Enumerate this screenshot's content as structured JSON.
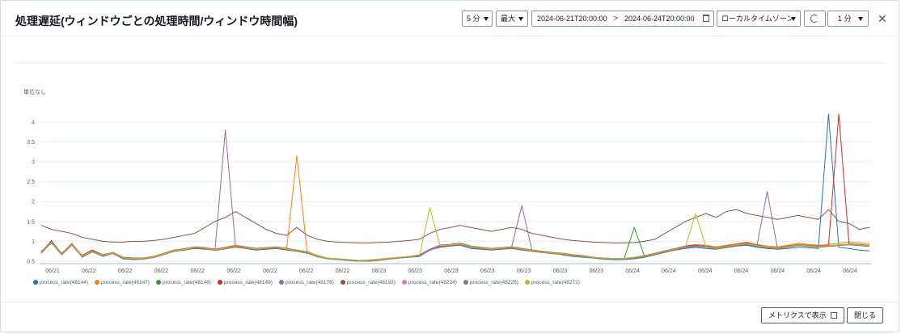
{
  "header": {
    "title": "処理遅延(ウィンドウごとの処理時間/ウィンドウ時間幅)",
    "period": "5 分",
    "stat": "最大",
    "range_start": "2024-06-21T20:00:00",
    "range_sep": ">",
    "range_end": "2024-06-24T20:00:00",
    "timezone": "ローカルタイムゾーン",
    "interval": "1 分",
    "close_label": "✕"
  },
  "footer": {
    "view_metrics_label": "メトリクスで表示",
    "close_label": "閉じる"
  },
  "chart_data": {
    "type": "line",
    "unit_label": "単位なし",
    "ylim": [
      0.5,
      4.2
    ],
    "yticks": [
      "0.5",
      "1",
      "1.5",
      "2",
      "2.5",
      "3",
      "3.5",
      "4"
    ],
    "xticks": [
      "06/21",
      "06/22",
      "06/22",
      "06/22",
      "06/22",
      "06/22",
      "06/22",
      "06/22",
      "06/22",
      "06/23",
      "06/23",
      "06/23",
      "06/23",
      "06/23",
      "06/23",
      "06/23",
      "06/24",
      "06/24",
      "06/24",
      "06/24",
      "06/24",
      "06/24",
      "06/24"
    ],
    "grid": true,
    "legend_position": "bottom",
    "series": [
      {
        "name": "process_rate(48144)",
        "color": "#1f77b4",
        "values": [
          0.72,
          1.02,
          0.68,
          0.95,
          0.6,
          0.75,
          0.62,
          0.7,
          0.56,
          0.54,
          0.55,
          0.6,
          0.68,
          0.75,
          0.78,
          0.82,
          0.8,
          0.78,
          0.82,
          0.85,
          0.82,
          0.78,
          0.8,
          0.82,
          0.78,
          0.75,
          0.7,
          0.62,
          0.56,
          0.54,
          0.52,
          0.5,
          0.5,
          0.52,
          0.55,
          0.58,
          0.6,
          0.62,
          0.78,
          0.85,
          0.88,
          0.9,
          0.82,
          0.8,
          0.78,
          0.8,
          0.82,
          0.78,
          0.75,
          0.72,
          0.7,
          0.66,
          0.62,
          0.6,
          0.58,
          0.55,
          0.54,
          0.54,
          0.56,
          0.6,
          0.66,
          0.72,
          0.78,
          0.82,
          0.85,
          0.82,
          0.8,
          0.84,
          0.88,
          0.9,
          0.85,
          0.82,
          0.8,
          0.82,
          0.85,
          0.84,
          0.82,
          4.2,
          0.85,
          0.82,
          0.78,
          0.76
        ]
      },
      {
        "name": "process_rate(48147)",
        "color": "#ff7f0e",
        "values": [
          0.75,
          0.95,
          0.7,
          0.9,
          0.65,
          0.78,
          0.66,
          0.72,
          0.6,
          0.58,
          0.58,
          0.62,
          0.7,
          0.78,
          0.82,
          0.86,
          0.84,
          0.8,
          0.85,
          0.9,
          0.86,
          0.82,
          0.84,
          0.86,
          0.82,
          3.15,
          0.74,
          0.64,
          0.58,
          0.56,
          0.54,
          0.52,
          0.53,
          0.55,
          0.58,
          0.6,
          0.62,
          0.66,
          0.8,
          0.9,
          0.92,
          0.95,
          0.88,
          0.85,
          0.82,
          0.84,
          0.86,
          0.82,
          0.78,
          0.75,
          0.72,
          0.7,
          0.66,
          0.64,
          0.6,
          0.58,
          0.57,
          0.57,
          0.6,
          0.64,
          0.7,
          0.76,
          0.82,
          0.88,
          0.92,
          0.9,
          0.86,
          0.9,
          0.94,
          0.98,
          0.92,
          0.88,
          0.86,
          0.9,
          0.95,
          0.92,
          0.9,
          0.92,
          0.95,
          0.98,
          0.96,
          0.94
        ]
      },
      {
        "name": "process_rate(48148)",
        "color": "#2ca02c",
        "values": [
          0.7,
          0.98,
          0.66,
          0.92,
          0.62,
          0.74,
          0.64,
          0.7,
          0.58,
          0.56,
          0.56,
          0.6,
          0.68,
          0.76,
          0.8,
          0.84,
          0.82,
          0.78,
          0.82,
          0.86,
          0.84,
          0.8,
          0.82,
          0.84,
          0.8,
          0.76,
          0.72,
          0.62,
          0.57,
          0.55,
          0.53,
          0.51,
          0.52,
          0.54,
          0.56,
          0.6,
          0.62,
          0.64,
          0.78,
          0.88,
          0.9,
          0.92,
          0.86,
          0.82,
          0.8,
          0.82,
          0.84,
          0.8,
          0.76,
          0.74,
          0.72,
          0.68,
          0.64,
          0.62,
          0.6,
          0.57,
          0.56,
          0.56,
          1.35,
          0.62,
          0.68,
          0.74,
          0.8,
          0.85,
          0.88,
          0.86,
          0.82,
          0.86,
          0.9,
          0.94,
          0.88,
          0.85,
          0.84,
          0.86,
          0.9,
          0.88,
          0.86,
          0.88,
          0.9,
          0.92,
          0.9,
          0.88
        ]
      },
      {
        "name": "process_rate(48149)",
        "color": "#d62728",
        "values": [
          0.74,
          1.0,
          0.7,
          0.94,
          0.64,
          0.78,
          0.66,
          0.72,
          0.6,
          0.58,
          0.58,
          0.62,
          0.7,
          0.78,
          0.8,
          0.86,
          0.84,
          0.8,
          0.84,
          0.88,
          0.86,
          0.82,
          0.84,
          0.86,
          0.82,
          0.78,
          0.74,
          0.64,
          0.58,
          0.56,
          0.54,
          0.52,
          0.52,
          0.54,
          0.57,
          0.6,
          0.62,
          0.66,
          0.8,
          0.9,
          0.92,
          0.95,
          0.88,
          0.84,
          0.82,
          0.84,
          0.86,
          0.82,
          0.78,
          0.75,
          0.72,
          0.7,
          0.66,
          0.64,
          0.6,
          0.58,
          0.57,
          0.57,
          0.6,
          0.64,
          0.7,
          0.76,
          0.82,
          0.88,
          0.9,
          0.88,
          0.84,
          0.88,
          0.92,
          0.96,
          0.9,
          0.86,
          0.84,
          0.88,
          0.92,
          0.9,
          0.88,
          0.9,
          4.2,
          0.94,
          0.92,
          0.9
        ]
      },
      {
        "name": "process_rate(48176)",
        "color": "#9467bd",
        "values": [
          0.73,
          0.99,
          0.69,
          0.93,
          0.63,
          0.76,
          0.65,
          0.71,
          0.59,
          0.57,
          0.57,
          0.61,
          0.69,
          0.77,
          0.81,
          0.85,
          0.83,
          0.79,
          3.8,
          0.87,
          0.85,
          0.81,
          0.83,
          0.85,
          0.81,
          0.77,
          0.73,
          0.63,
          0.58,
          0.56,
          0.54,
          0.52,
          0.52,
          0.54,
          0.56,
          0.6,
          0.62,
          0.65,
          0.8,
          0.89,
          0.91,
          0.94,
          0.87,
          0.83,
          0.81,
          0.83,
          0.85,
          1.9,
          0.77,
          0.74,
          0.71,
          0.69,
          0.65,
          0.63,
          0.6,
          0.58,
          0.57,
          0.57,
          0.6,
          0.63,
          0.69,
          0.75,
          0.81,
          0.86,
          0.89,
          0.87,
          0.83,
          0.87,
          0.91,
          0.95,
          0.89,
          2.25,
          0.83,
          0.87,
          0.91,
          0.89,
          0.87,
          0.89,
          0.91,
          0.93,
          0.91,
          0.89
        ]
      },
      {
        "name": "process_rate(48192)",
        "color": "#8c564b",
        "values": [
          1.4,
          1.3,
          1.25,
          1.2,
          1.1,
          1.05,
          1.0,
          0.98,
          0.98,
          1.0,
          1.0,
          1.02,
          1.05,
          1.1,
          1.15,
          1.2,
          1.35,
          1.5,
          1.6,
          1.75,
          1.6,
          1.45,
          1.3,
          1.2,
          1.15,
          1.35,
          1.15,
          1.05,
          1.0,
          0.98,
          0.97,
          0.96,
          0.96,
          0.97,
          0.98,
          1.0,
          1.02,
          1.05,
          1.2,
          1.3,
          1.35,
          1.4,
          1.35,
          1.3,
          1.25,
          1.3,
          1.35,
          1.3,
          1.2,
          1.15,
          1.1,
          1.05,
          1.02,
          1.0,
          0.98,
          0.97,
          0.96,
          0.96,
          0.97,
          1.0,
          1.05,
          1.2,
          1.35,
          1.5,
          1.6,
          1.7,
          1.6,
          1.75,
          1.8,
          1.7,
          1.65,
          1.6,
          1.55,
          1.6,
          1.65,
          1.6,
          1.55,
          1.8,
          1.5,
          1.45,
          1.3,
          1.35
        ]
      },
      {
        "name": "process_rate(48224)",
        "color": "#e377c2",
        "values": [
          0.71,
          0.97,
          0.67,
          0.91,
          0.62,
          0.74,
          0.64,
          0.7,
          0.58,
          0.56,
          0.56,
          0.6,
          0.68,
          0.76,
          0.79,
          0.84,
          0.82,
          0.78,
          0.82,
          0.86,
          0.84,
          0.8,
          0.82,
          0.84,
          0.8,
          0.76,
          0.72,
          0.62,
          0.57,
          0.55,
          0.53,
          0.51,
          0.51,
          0.53,
          0.56,
          0.59,
          0.61,
          0.64,
          0.78,
          0.88,
          0.9,
          0.92,
          0.86,
          0.82,
          0.8,
          0.82,
          0.84,
          0.8,
          0.76,
          0.73,
          0.7,
          0.68,
          0.64,
          0.62,
          0.59,
          0.57,
          0.56,
          0.56,
          0.59,
          0.62,
          0.68,
          0.74,
          0.8,
          0.85,
          0.88,
          0.86,
          0.82,
          0.86,
          0.9,
          0.93,
          0.88,
          0.85,
          0.82,
          0.86,
          0.9,
          0.88,
          0.86,
          0.88,
          0.9,
          0.92,
          0.9,
          0.88
        ]
      },
      {
        "name": "process_rate(48226)",
        "color": "#7f7f7f",
        "values": [
          0.7,
          0.96,
          0.66,
          0.9,
          0.61,
          0.73,
          0.63,
          0.69,
          0.57,
          0.55,
          0.55,
          0.59,
          0.67,
          0.75,
          0.78,
          0.83,
          0.81,
          0.77,
          0.81,
          0.85,
          0.83,
          0.79,
          0.81,
          0.83,
          0.79,
          0.75,
          0.71,
          0.61,
          0.56,
          0.54,
          0.52,
          0.5,
          0.5,
          0.52,
          0.55,
          0.58,
          0.6,
          0.63,
          0.77,
          0.87,
          0.89,
          0.91,
          0.85,
          0.81,
          0.79,
          0.81,
          0.83,
          0.79,
          0.75,
          0.72,
          0.69,
          0.67,
          0.63,
          0.61,
          0.58,
          0.56,
          0.55,
          0.55,
          0.58,
          0.61,
          0.67,
          0.73,
          0.79,
          0.84,
          0.87,
          0.85,
          0.81,
          0.85,
          0.89,
          0.92,
          0.87,
          0.84,
          0.81,
          0.85,
          0.89,
          0.87,
          0.85,
          0.87,
          0.89,
          0.91,
          0.89,
          0.87
        ]
      },
      {
        "name": "process_rate(48272)",
        "color": "#bcbd22",
        "values": [
          0.72,
          0.98,
          0.68,
          0.92,
          0.63,
          0.75,
          0.65,
          0.71,
          0.59,
          0.57,
          0.57,
          0.61,
          0.69,
          0.77,
          0.8,
          0.85,
          0.83,
          0.79,
          0.83,
          0.87,
          0.85,
          0.81,
          0.83,
          0.85,
          0.81,
          0.77,
          0.73,
          0.63,
          0.58,
          0.56,
          0.54,
          0.52,
          0.52,
          0.54,
          0.57,
          0.6,
          0.62,
          0.65,
          1.85,
          0.89,
          0.91,
          0.93,
          0.87,
          0.83,
          0.81,
          0.83,
          0.85,
          0.81,
          0.77,
          0.74,
          0.71,
          0.69,
          0.65,
          0.63,
          0.6,
          0.58,
          0.57,
          0.57,
          0.6,
          0.63,
          0.69,
          0.75,
          0.81,
          0.86,
          1.7,
          0.87,
          0.83,
          0.87,
          0.91,
          0.94,
          0.89,
          0.86,
          0.83,
          0.87,
          0.91,
          0.89,
          0.87,
          0.89,
          0.91,
          0.93,
          0.91,
          0.89
        ]
      }
    ]
  }
}
